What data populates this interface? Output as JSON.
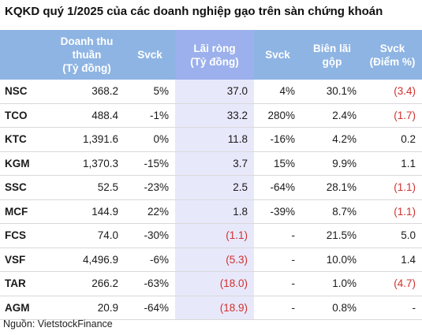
{
  "title": "KQKD quý 1/2025 của các doanh nghiệp gạo trên sàn chứng khoán",
  "source": "Nguồn: VietstockFinance",
  "colors": {
    "header_bg": "#8eb4e3",
    "highlight_col": "#e8e8fb",
    "negative": "#d0312d"
  },
  "chart_data": {
    "type": "table",
    "columns": [
      "",
      "Doanh thu thuần (Tỷ đồng)",
      "Svck",
      "Lãi ròng (Tỷ đồng)",
      "Svck",
      "Biên lãi gộp",
      "Svck (Điểm %)"
    ],
    "header_lines": [
      [
        ""
      ],
      [
        "Doanh thu",
        "thuần",
        "(Tỷ đồng)"
      ],
      [
        "Svck"
      ],
      [
        "Lãi ròng",
        "(Tỷ đồng)"
      ],
      [
        "Svck"
      ],
      [
        "Biên lãi",
        "gộp"
      ],
      [
        "Svck",
        "(Điểm %)"
      ]
    ],
    "rows": [
      [
        "NSC",
        "368.2",
        "5%",
        "37.0",
        "4%",
        "30.1%",
        "(3.4)"
      ],
      [
        "TCO",
        "488.4",
        "-1%",
        "33.2",
        "280%",
        "2.4%",
        "(1.7)"
      ],
      [
        "KTC",
        "1,391.6",
        "0%",
        "11.8",
        "-16%",
        "4.2%",
        "0.2"
      ],
      [
        "KGM",
        "1,370.3",
        "-15%",
        "3.7",
        "15%",
        "9.9%",
        "1.1"
      ],
      [
        "SSC",
        "52.5",
        "-23%",
        "2.5",
        "-64%",
        "28.1%",
        "(1.1)"
      ],
      [
        "MCF",
        "144.9",
        "22%",
        "1.8",
        "-39%",
        "8.7%",
        "(1.1)"
      ],
      [
        "FCS",
        "74.0",
        "-30%",
        "(1.1)",
        "-",
        "21.5%",
        "5.0"
      ],
      [
        "VSF",
        "4,496.9",
        "-6%",
        "(5.3)",
        "-",
        "10.0%",
        "1.4"
      ],
      [
        "TAR",
        "266.2",
        "-63%",
        "(18.0)",
        "-",
        "1.0%",
        "(4.7)"
      ],
      [
        "AGM",
        "20.9",
        "-64%",
        "(18.9)",
        "-",
        "0.8%",
        "-"
      ]
    ]
  }
}
